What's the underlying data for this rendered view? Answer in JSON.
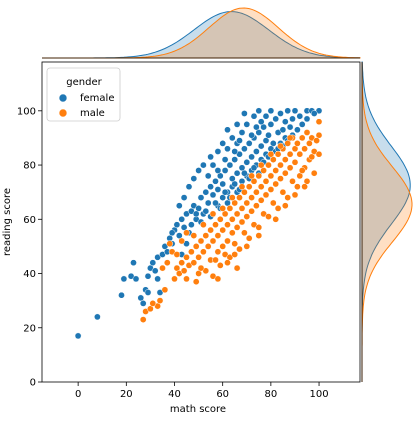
{
  "chart_data": {
    "type": "scatter",
    "subtype": "jointplot",
    "title": "",
    "xlabel": "math score",
    "ylabel": "reading score",
    "xlim": [
      -15,
      117
    ],
    "ylim": [
      0,
      118
    ],
    "xticks": [
      0,
      20,
      40,
      60,
      80,
      100
    ],
    "yticks": [
      0,
      20,
      40,
      60,
      80,
      100
    ],
    "grid": false,
    "legend": {
      "title": "gender",
      "placement": "top-left"
    },
    "marginals": {
      "top": "kde of math score by gender",
      "right": "kde of reading score by gender",
      "top_visible_x_range": [
        -15,
        117
      ],
      "right_visible_y_range": [
        0,
        118
      ]
    },
    "series": [
      {
        "name": "female",
        "color": "#1f77b4",
        "kde_mean_x": 63.6,
        "kde_sd_x": 15.5,
        "kde_mean_y": 72.6,
        "kde_sd_y": 14.4,
        "points": [
          [
            0,
            17
          ],
          [
            8,
            24
          ],
          [
            18,
            32
          ],
          [
            19,
            38
          ],
          [
            22,
            39
          ],
          [
            23,
            44
          ],
          [
            24,
            38
          ],
          [
            26,
            31
          ],
          [
            28,
            34
          ],
          [
            29,
            39
          ],
          [
            30,
            42
          ],
          [
            31,
            44
          ],
          [
            32,
            41
          ],
          [
            33,
            46
          ],
          [
            34,
            33
          ],
          [
            35,
            47
          ],
          [
            36,
            50
          ],
          [
            37,
            44
          ],
          [
            38,
            53
          ],
          [
            39,
            51
          ],
          [
            40,
            56
          ],
          [
            41,
            58
          ],
          [
            42,
            54
          ],
          [
            43,
            60
          ],
          [
            44,
            57
          ],
          [
            45,
            62
          ],
          [
            46,
            55
          ],
          [
            47,
            63
          ],
          [
            48,
            65
          ],
          [
            49,
            60
          ],
          [
            50,
            64
          ],
          [
            51,
            68
          ],
          [
            52,
            62
          ],
          [
            53,
            70
          ],
          [
            54,
            66
          ],
          [
            55,
            72
          ],
          [
            56,
            69
          ],
          [
            57,
            74
          ],
          [
            58,
            71
          ],
          [
            59,
            76
          ],
          [
            60,
            73
          ],
          [
            61,
            78
          ],
          [
            62,
            70
          ],
          [
            63,
            80
          ],
          [
            64,
            75
          ],
          [
            65,
            82
          ],
          [
            66,
            77
          ],
          [
            67,
            84
          ],
          [
            68,
            79
          ],
          [
            69,
            86
          ],
          [
            70,
            81
          ],
          [
            71,
            88
          ],
          [
            72,
            83
          ],
          [
            73,
            90
          ],
          [
            74,
            85
          ],
          [
            75,
            92
          ],
          [
            76,
            87
          ],
          [
            77,
            94
          ],
          [
            78,
            89
          ],
          [
            79,
            91
          ],
          [
            80,
            95
          ],
          [
            81,
            88
          ],
          [
            82,
            97
          ],
          [
            83,
            92
          ],
          [
            84,
            99
          ],
          [
            85,
            93
          ],
          [
            86,
            96
          ],
          [
            87,
            100
          ],
          [
            88,
            94
          ],
          [
            89,
            97
          ],
          [
            90,
            100
          ],
          [
            92,
            98
          ],
          [
            95,
            100
          ],
          [
            97,
            100
          ],
          [
            100,
            100
          ],
          [
            42,
            65
          ],
          [
            44,
            68
          ],
          [
            46,
            72
          ],
          [
            48,
            75
          ],
          [
            50,
            78
          ],
          [
            52,
            80
          ],
          [
            55,
            83
          ],
          [
            58,
            85
          ],
          [
            60,
            88
          ],
          [
            62,
            86
          ],
          [
            64,
            90
          ],
          [
            66,
            88
          ],
          [
            68,
            92
          ],
          [
            70,
            95
          ],
          [
            56,
            80
          ],
          [
            54,
            76
          ],
          [
            58,
            78
          ],
          [
            61,
            82
          ],
          [
            65,
            85
          ],
          [
            67,
            89
          ],
          [
            72,
            91
          ],
          [
            74,
            94
          ],
          [
            76,
            96
          ],
          [
            78,
            98
          ],
          [
            58,
            65
          ],
          [
            60,
            68
          ],
          [
            62,
            66
          ],
          [
            64,
            72
          ],
          [
            66,
            70
          ],
          [
            68,
            74
          ],
          [
            70,
            76
          ],
          [
            72,
            78
          ],
          [
            74,
            80
          ],
          [
            76,
            82
          ],
          [
            78,
            84
          ],
          [
            80,
            86
          ],
          [
            82,
            85
          ],
          [
            84,
            88
          ],
          [
            86,
            90
          ],
          [
            47,
            58
          ],
          [
            49,
            62
          ],
          [
            51,
            59
          ],
          [
            53,
            63
          ],
          [
            55,
            61
          ],
          [
            57,
            66
          ],
          [
            59,
            64
          ],
          [
            61,
            70
          ],
          [
            63,
            68
          ],
          [
            65,
            73
          ],
          [
            67,
            71
          ],
          [
            69,
            77
          ],
          [
            71,
            75
          ],
          [
            73,
            79
          ],
          [
            75,
            77
          ],
          [
            77,
            81
          ],
          [
            79,
            83
          ],
          [
            81,
            82
          ],
          [
            83,
            86
          ],
          [
            85,
            87
          ],
          [
            87,
            89
          ],
          [
            89,
            91
          ],
          [
            91,
            93
          ],
          [
            93,
            95
          ],
          [
            95,
            97
          ],
          [
            98,
            99
          ],
          [
            43,
            47
          ],
          [
            45,
            51
          ],
          [
            39,
            55
          ],
          [
            37,
            48
          ],
          [
            33,
            38
          ],
          [
            29,
            33
          ],
          [
            27,
            29
          ],
          [
            62,
            93
          ],
          [
            66,
            95
          ],
          [
            69,
            99
          ],
          [
            73,
            98
          ],
          [
            80,
            100
          ],
          [
            75,
            100
          ]
        ]
      },
      {
        "name": "male",
        "color": "#ff7f0e",
        "kde_mean_x": 68.7,
        "kde_sd_x": 14.4,
        "kde_mean_y": 65.5,
        "kde_sd_y": 13.9,
        "points": [
          [
            27,
            23
          ],
          [
            28,
            26
          ],
          [
            30,
            27
          ],
          [
            33,
            28
          ],
          [
            34,
            30
          ],
          [
            40,
            38
          ],
          [
            41,
            42
          ],
          [
            42,
            40
          ],
          [
            43,
            44
          ],
          [
            44,
            41
          ],
          [
            45,
            46
          ],
          [
            46,
            43
          ],
          [
            47,
            48
          ],
          [
            48,
            44
          ],
          [
            49,
            50
          ],
          [
            50,
            46
          ],
          [
            51,
            52
          ],
          [
            52,
            48
          ],
          [
            53,
            54
          ],
          [
            54,
            50
          ],
          [
            55,
            56
          ],
          [
            56,
            52
          ],
          [
            57,
            58
          ],
          [
            58,
            54
          ],
          [
            59,
            60
          ],
          [
            60,
            56
          ],
          [
            61,
            62
          ],
          [
            62,
            58
          ],
          [
            63,
            64
          ],
          [
            64,
            60
          ],
          [
            65,
            66
          ],
          [
            66,
            62
          ],
          [
            67,
            68
          ],
          [
            68,
            64
          ],
          [
            69,
            70
          ],
          [
            70,
            66
          ],
          [
            71,
            72
          ],
          [
            72,
            68
          ],
          [
            73,
            74
          ],
          [
            74,
            70
          ],
          [
            75,
            76
          ],
          [
            76,
            72
          ],
          [
            77,
            78
          ],
          [
            78,
            74
          ],
          [
            79,
            80
          ],
          [
            80,
            76
          ],
          [
            81,
            82
          ],
          [
            82,
            78
          ],
          [
            83,
            84
          ],
          [
            84,
            80
          ],
          [
            85,
            86
          ],
          [
            86,
            82
          ],
          [
            87,
            88
          ],
          [
            88,
            84
          ],
          [
            89,
            90
          ],
          [
            90,
            86
          ],
          [
            91,
            88
          ],
          [
            92,
            84
          ],
          [
            93,
            90
          ],
          [
            94,
            86
          ],
          [
            95,
            92
          ],
          [
            96,
            88
          ],
          [
            97,
            90
          ],
          [
            98,
            85
          ],
          [
            100,
            96
          ],
          [
            100,
            91
          ],
          [
            99,
            89
          ],
          [
            37,
            44
          ],
          [
            39,
            48
          ],
          [
            35,
            42
          ],
          [
            38,
            51
          ],
          [
            45,
            38
          ],
          [
            50,
            40
          ],
          [
            55,
            45
          ],
          [
            58,
            48
          ],
          [
            60,
            50
          ],
          [
            62,
            52
          ],
          [
            64,
            55
          ],
          [
            66,
            57
          ],
          [
            68,
            59
          ],
          [
            70,
            61
          ],
          [
            72,
            63
          ],
          [
            74,
            65
          ],
          [
            76,
            67
          ],
          [
            78,
            69
          ],
          [
            80,
            71
          ],
          [
            82,
            73
          ],
          [
            84,
            75
          ],
          [
            86,
            77
          ],
          [
            88,
            79
          ],
          [
            90,
            81
          ],
          [
            92,
            76
          ],
          [
            94,
            79
          ],
          [
            96,
            82
          ],
          [
            53,
            41
          ],
          [
            57,
            45
          ],
          [
            61,
            47
          ],
          [
            65,
            51
          ],
          [
            69,
            55
          ],
          [
            73,
            58
          ],
          [
            77,
            62
          ],
          [
            81,
            66
          ],
          [
            85,
            70
          ],
          [
            89,
            74
          ],
          [
            93,
            78
          ],
          [
            97,
            83
          ],
          [
            49,
            37
          ],
          [
            51,
            42
          ],
          [
            56,
            39
          ],
          [
            63,
            46
          ],
          [
            67,
            49
          ],
          [
            71,
            53
          ],
          [
            75,
            57
          ],
          [
            79,
            61
          ],
          [
            83,
            64
          ],
          [
            87,
            68
          ],
          [
            91,
            72
          ],
          [
            95,
            74
          ],
          [
            59,
            43
          ],
          [
            48,
            54
          ],
          [
            52,
            58
          ],
          [
            56,
            62
          ],
          [
            60,
            64
          ],
          [
            64,
            68
          ],
          [
            68,
            72
          ],
          [
            72,
            76
          ],
          [
            76,
            80
          ],
          [
            80,
            84
          ],
          [
            84,
            87
          ],
          [
            88,
            90
          ],
          [
            45,
            55
          ],
          [
            41,
            47
          ],
          [
            43,
            52
          ],
          [
            36,
            34
          ],
          [
            31,
            29
          ],
          [
            65,
            47
          ],
          [
            70,
            50
          ],
          [
            75,
            54
          ],
          [
            82,
            60
          ],
          [
            86,
            65
          ],
          [
            90,
            69
          ],
          [
            94,
            72
          ],
          [
            98,
            77
          ],
          [
            100,
            84
          ],
          [
            62,
            44
          ],
          [
            66,
            42
          ],
          [
            58,
            38
          ]
        ]
      }
    ]
  }
}
